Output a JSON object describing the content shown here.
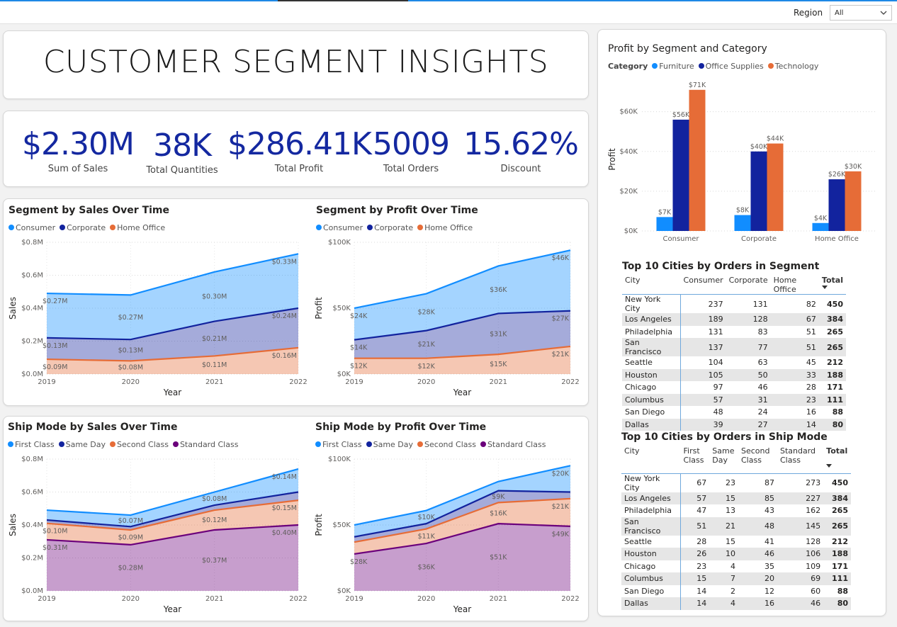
{
  "header": {
    "region_label": "Region",
    "region_value": "All"
  },
  "title": "CUSTOMER SEGMENT INSIGHTS",
  "kpis": [
    {
      "value": "$2.30M",
      "label": "Sum of Sales"
    },
    {
      "value": "38K",
      "label": "Total Quantities"
    },
    {
      "value": "$286.41K",
      "label": "Total Profit"
    },
    {
      "value": "5009",
      "label": "Total Orders"
    },
    {
      "value": "15.62%",
      "label": "Discount"
    }
  ],
  "colors": {
    "consumer": "#118dff",
    "corporate": "#12239e",
    "home_office": "#e66c37",
    "first_class": "#118dff",
    "same_day": "#12239e",
    "second_class": "#e66c37",
    "standard_class": "#6b007b",
    "kpi": "#1428a0"
  },
  "chart_data": [
    {
      "id": "segSales",
      "type": "area",
      "title": "Segment by Sales Over Time",
      "xlabel": "Year",
      "ylabel": "Sales",
      "x": [
        "2019",
        "2020",
        "2021",
        "2022"
      ],
      "ylim": [
        0,
        0.8
      ],
      "yticks": [
        "$0.0M",
        "$0.2M",
        "$0.4M",
        "$0.6M",
        "$0.8M"
      ],
      "series": [
        {
          "name": "Consumer",
          "color": "#118dff",
          "values": [
            0.27,
            0.27,
            0.3,
            0.33
          ],
          "labels": [
            "$0.27M",
            "$0.27M",
            "$0.30M",
            "$0.33M"
          ]
        },
        {
          "name": "Corporate",
          "color": "#12239e",
          "values": [
            0.13,
            0.13,
            0.21,
            0.24
          ],
          "labels": [
            "$0.13M",
            "$0.13M",
            "$0.21M",
            "$0.24M"
          ]
        },
        {
          "name": "Home Office",
          "color": "#e66c37",
          "values": [
            0.09,
            0.08,
            0.11,
            0.16
          ],
          "labels": [
            "$0.09M",
            "$0.08M",
            "$0.11M",
            "$0.16M"
          ]
        }
      ]
    },
    {
      "id": "segProfit",
      "type": "area",
      "title": "Segment by Profit Over Time",
      "xlabel": "Year",
      "ylabel": "Profit",
      "x": [
        "2019",
        "2020",
        "2021",
        "2022"
      ],
      "ylim": [
        0,
        100
      ],
      "yticks": [
        "$0K",
        "$50K",
        "$100K"
      ],
      "series": [
        {
          "name": "Consumer",
          "color": "#118dff",
          "values": [
            24,
            28,
            36,
            46
          ],
          "labels": [
            "$24K",
            "$28K",
            "$36K",
            "$46K"
          ]
        },
        {
          "name": "Corporate",
          "color": "#12239e",
          "values": [
            14,
            21,
            31,
            27
          ],
          "labels": [
            "$14K",
            "$21K",
            "$31K",
            "$27K"
          ]
        },
        {
          "name": "Home Office",
          "color": "#e66c37",
          "values": [
            12,
            12,
            15,
            21
          ],
          "labels": [
            "$12K",
            "$12K",
            "$15K",
            "$21K"
          ]
        }
      ]
    },
    {
      "id": "shipSales",
      "type": "area",
      "title": "Ship Mode by Sales Over Time",
      "xlabel": "Year",
      "ylabel": "Sales",
      "x": [
        "2019",
        "2020",
        "2021",
        "2022"
      ],
      "ylim": [
        0,
        0.8
      ],
      "yticks": [
        "$0.0M",
        "$0.2M",
        "$0.4M",
        "$0.6M",
        "$0.8M"
      ],
      "series": [
        {
          "name": "First Class",
          "color": "#118dff",
          "values": [
            0.06,
            0.07,
            0.08,
            0.14
          ],
          "labels": [
            "",
            "$0.07M",
            "$0.08M",
            "$0.14M"
          ]
        },
        {
          "name": "Same Day",
          "color": "#12239e",
          "values": [
            0.02,
            0.02,
            0.03,
            0.05
          ],
          "labels": [
            "",
            "",
            "",
            ""
          ]
        },
        {
          "name": "Second Class",
          "color": "#e66c37",
          "values": [
            0.1,
            0.09,
            0.12,
            0.15
          ],
          "labels": [
            "$0.10M",
            "$0.09M",
            "$0.12M",
            "$0.15M"
          ]
        },
        {
          "name": "Standard Class",
          "color": "#6b007b",
          "values": [
            0.31,
            0.28,
            0.37,
            0.4
          ],
          "labels": [
            "$0.31M",
            "$0.28M",
            "$0.37M",
            "$0.40M"
          ]
        }
      ]
    },
    {
      "id": "shipProfit",
      "type": "area",
      "title": "Ship Mode by Profit Over Time",
      "xlabel": "Year",
      "ylabel": "Profit",
      "x": [
        "2019",
        "2020",
        "2021",
        "2022"
      ],
      "ylim": [
        0,
        100
      ],
      "yticks": [
        "$0K",
        "$50K",
        "$100K"
      ],
      "series": [
        {
          "name": "First Class",
          "color": "#118dff",
          "values": [
            9,
            10,
            7,
            20
          ],
          "labels": [
            "",
            "$10K",
            "",
            "$20K"
          ]
        },
        {
          "name": "Same Day",
          "color": "#12239e",
          "values": [
            4,
            4,
            9,
            5
          ],
          "labels": [
            "",
            "",
            "$9K",
            ""
          ]
        },
        {
          "name": "Second Class",
          "color": "#e66c37",
          "values": [
            9,
            11,
            16,
            21
          ],
          "labels": [
            "",
            "$11K",
            "$16K",
            "$21K"
          ]
        },
        {
          "name": "Standard Class",
          "color": "#6b007b",
          "values": [
            28,
            36,
            51,
            49
          ],
          "labels": [
            "$28K",
            "$36K",
            "$51K",
            "$49K"
          ]
        }
      ]
    },
    {
      "id": "profitBar",
      "type": "bar",
      "title": "Profit by Segment and Category",
      "legend_title": "Category",
      "ylabel": "Profit",
      "categories": [
        "Consumer",
        "Corporate",
        "Home Office"
      ],
      "ylim": [
        0,
        72
      ],
      "yticks": [
        "$0K",
        "$20K",
        "$40K",
        "$60K"
      ],
      "series": [
        {
          "name": "Furniture",
          "color": "#118dff",
          "values": [
            7,
            8,
            4
          ],
          "labels": [
            "$7K",
            "$8K",
            "$4K"
          ]
        },
        {
          "name": "Office Supplies",
          "color": "#12239e",
          "values": [
            56,
            40,
            26
          ],
          "labels": [
            "$56K",
            "$40K",
            "$26K"
          ]
        },
        {
          "name": "Technology",
          "color": "#e66c37",
          "values": [
            71,
            44,
            30
          ],
          "labels": [
            "$71K",
            "$44K",
            "$30K"
          ]
        }
      ]
    }
  ],
  "table_segment": {
    "title": "Top 10 Cities by Orders in Segment",
    "headers": [
      "City",
      "Consumer",
      "Corporate",
      "Home Office",
      "Total"
    ],
    "rows": [
      [
        "New York City",
        "237",
        "131",
        "82",
        "450"
      ],
      [
        "Los Angeles",
        "189",
        "128",
        "67",
        "384"
      ],
      [
        "Philadelphia",
        "131",
        "83",
        "51",
        "265"
      ],
      [
        "San Francisco",
        "137",
        "77",
        "51",
        "265"
      ],
      [
        "Seattle",
        "104",
        "63",
        "45",
        "212"
      ],
      [
        "Houston",
        "105",
        "50",
        "33",
        "188"
      ],
      [
        "Chicago",
        "97",
        "46",
        "28",
        "171"
      ],
      [
        "Columbus",
        "57",
        "31",
        "23",
        "111"
      ],
      [
        "San Diego",
        "48",
        "24",
        "16",
        "88"
      ],
      [
        "Dallas",
        "39",
        "27",
        "14",
        "80"
      ]
    ]
  },
  "table_ship": {
    "title": "Top 10 Cities by Orders in Ship Mode",
    "headers": [
      "City",
      "First Class",
      "Same Day",
      "Second Class",
      "Standard Class",
      "Total"
    ],
    "rows": [
      [
        "New York City",
        "67",
        "23",
        "87",
        "273",
        "450"
      ],
      [
        "Los Angeles",
        "57",
        "15",
        "85",
        "227",
        "384"
      ],
      [
        "Philadelphia",
        "47",
        "13",
        "43",
        "162",
        "265"
      ],
      [
        "San Francisco",
        "51",
        "21",
        "48",
        "145",
        "265"
      ],
      [
        "Seattle",
        "28",
        "15",
        "41",
        "128",
        "212"
      ],
      [
        "Houston",
        "26",
        "10",
        "46",
        "106",
        "188"
      ],
      [
        "Chicago",
        "23",
        "4",
        "35",
        "109",
        "171"
      ],
      [
        "Columbus",
        "15",
        "7",
        "20",
        "69",
        "111"
      ],
      [
        "San Diego",
        "14",
        "2",
        "12",
        "60",
        "88"
      ],
      [
        "Dallas",
        "14",
        "4",
        "16",
        "46",
        "80"
      ]
    ]
  }
}
